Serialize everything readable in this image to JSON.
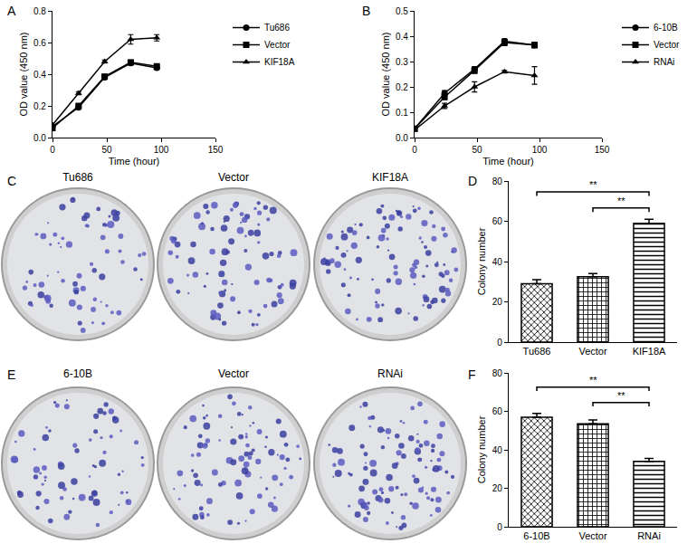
{
  "chart_data": [
    {
      "panel": "A",
      "type": "line",
      "x_label": "Time (hour)",
      "y_label": "OD value (450 nm)",
      "x": [
        0,
        24,
        48,
        72,
        96
      ],
      "xlim": [
        0,
        150
      ],
      "xticks": [
        0,
        50,
        100,
        150
      ],
      "ylim": [
        0,
        0.8
      ],
      "yticks": [
        {
          "value": 0,
          "label": "0.0"
        },
        0.2,
        0.4,
        0.6,
        0.8
      ],
      "legend": "right",
      "series": [
        {
          "name": "Tu686",
          "color": "#000000",
          "marker": "circle",
          "values": [
            0.07,
            0.19,
            0.38,
            0.47,
            0.44
          ],
          "errors": [
            null,
            0.01,
            0.01,
            0.01,
            0.01
          ]
        },
        {
          "name": "Vector",
          "color": "#000000",
          "marker": "square",
          "values": [
            0.06,
            0.2,
            0.385,
            0.475,
            0.45
          ],
          "errors": [
            null,
            0.01,
            0.01,
            0.01,
            0.01
          ]
        },
        {
          "name": "KIF18A",
          "color": "#000000",
          "marker": "triangle-up",
          "values": [
            0.08,
            0.28,
            0.48,
            0.62,
            0.63
          ],
          "errors": [
            null,
            0.01,
            0.01,
            0.03,
            0.02
          ]
        }
      ]
    },
    {
      "panel": "B",
      "type": "line",
      "x_label": "Time (hour)",
      "y_label": "OD value (450 nm)",
      "x": [
        0,
        24,
        48,
        72,
        96
      ],
      "xlim": [
        0,
        150
      ],
      "xticks": [
        0,
        50,
        100,
        150
      ],
      "ylim": [
        0,
        0.5
      ],
      "yticks": [
        {
          "value": 0,
          "label": "0.0"
        },
        0.1,
        0.2,
        0.3,
        0.4,
        0.5
      ],
      "legend": "right",
      "series": [
        {
          "name": "6-10B",
          "color": "#000000",
          "marker": "circle",
          "values": [
            0.035,
            0.175,
            0.27,
            0.38,
            0.365
          ],
          "errors": [
            null,
            0.01,
            0.01,
            0.01,
            0.01
          ]
        },
        {
          "name": "Vector",
          "color": "#000000",
          "marker": "square",
          "values": [
            0.035,
            0.16,
            0.265,
            0.375,
            0.365
          ],
          "errors": [
            null,
            0.01,
            0.012,
            0.012,
            0.01
          ]
        },
        {
          "name": "RNAi",
          "color": "#000000",
          "marker": "triangle-up",
          "values": [
            0.03,
            0.125,
            0.2,
            0.26,
            0.245
          ],
          "errors": [
            null,
            0.01,
            0.02,
            0.005,
            0.035
          ]
        }
      ]
    },
    {
      "panel": "C",
      "type": "plates",
      "labels": [
        "Tu686",
        "Vector",
        "KIF18A"
      ]
    },
    {
      "panel": "D",
      "type": "bar",
      "y_label": "Colony number",
      "categories": [
        "Tu686",
        "Vector",
        "KIF18A"
      ],
      "values": [
        29,
        32.5,
        59
      ],
      "errors": [
        2,
        1.5,
        2
      ],
      "ylim": [
        0,
        80
      ],
      "yticks": [
        0,
        20,
        40,
        60,
        80
      ],
      "comparisons": [
        {
          "from": "Tu686",
          "to": "KIF18A",
          "label": "**"
        },
        {
          "from": "Vector",
          "to": "KIF18A",
          "label": "**"
        }
      ]
    },
    {
      "panel": "E",
      "type": "plates",
      "labels": [
        "6-10B",
        "Vector",
        "RNAi"
      ]
    },
    {
      "panel": "F",
      "type": "bar",
      "y_label": "Colony number",
      "categories": [
        "6-10B",
        "Vector",
        "RNAi"
      ],
      "values": [
        57,
        53.5,
        34
      ],
      "errors": [
        2,
        2,
        1.5
      ],
      "ylim": [
        0,
        80
      ],
      "yticks": [
        0,
        20,
        40,
        60,
        80
      ],
      "comparisons": [
        {
          "from": "6-10B",
          "to": "RNAi",
          "label": "**"
        },
        {
          "from": "Vector",
          "to": "RNAi",
          "label": "**"
        }
      ]
    }
  ]
}
